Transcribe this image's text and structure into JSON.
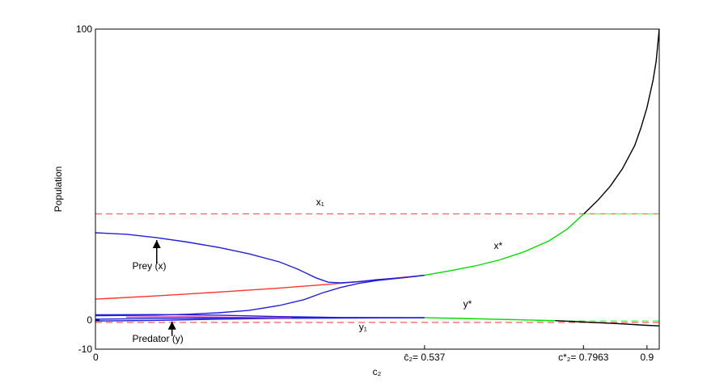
{
  "chart_data": {
    "type": "line",
    "title": "",
    "xlabel": "c₂",
    "ylabel": "Population",
    "xlim": [
      0,
      0.92
    ],
    "ylim": [
      -10,
      100
    ],
    "grid": false,
    "legend": "none",
    "x_ticks": [
      {
        "value": 0,
        "label": "0"
      },
      {
        "value": 0.537,
        "label": "c̄₂= 0.537"
      },
      {
        "value": 0.7963,
        "label": "c*₂= 0.7963"
      },
      {
        "value": 0.9,
        "label": "0.9"
      }
    ],
    "y_ticks": [
      {
        "value": 100,
        "label": "100"
      },
      {
        "value": 0,
        "label": "0"
      },
      {
        "value": -10,
        "label": "-10"
      }
    ],
    "annotations": [
      {
        "text": "x₁",
        "x": 0.36,
        "y": 39.5
      },
      {
        "text": "x*",
        "x": 0.65,
        "y": 24.5
      },
      {
        "text": "y*",
        "x": 0.6,
        "y": 4.5
      },
      {
        "text": "y₁",
        "x": 0.43,
        "y": -3.5
      },
      {
        "text": "Prey (x)",
        "x": 0.06,
        "y": 17.5
      },
      {
        "text": "Predator (y)",
        "x": 0.06,
        "y": -7.5
      }
    ],
    "arrows": [
      {
        "from": [
          0.1,
          19.5
        ],
        "to": [
          0.1,
          27.5
        ]
      },
      {
        "from": [
          0.125,
          -5.5
        ],
        "to": [
          0.125,
          -0.5
        ]
      }
    ],
    "series": [
      {
        "color": "#ff6a6a",
        "dash": "8,5",
        "points": [
          [
            0,
            36.5
          ],
          [
            0.92,
            36.5
          ]
        ]
      },
      {
        "color": "#ff6a6a",
        "dash": "8,5",
        "points": [
          [
            0,
            -0.8
          ],
          [
            0.92,
            -0.8
          ]
        ]
      },
      {
        "color": "#66ff66",
        "dash": "8,5",
        "points": [
          [
            0.797,
            36.5
          ],
          [
            0.92,
            36.5
          ]
        ]
      },
      {
        "color": "#66ff66",
        "dash": "8,5",
        "points": [
          [
            0.72,
            -0.3
          ],
          [
            0.92,
            -0.3
          ]
        ]
      },
      {
        "color": "#ff3333",
        "dash": "",
        "points": [
          [
            0,
            7.2
          ],
          [
            0.1,
            8.3
          ],
          [
            0.2,
            9.6
          ],
          [
            0.3,
            11.0
          ],
          [
            0.4,
            12.6
          ],
          [
            0.537,
            15.4
          ]
        ]
      },
      {
        "color": "#1f1fdd",
        "dash": "",
        "points": [
          [
            0,
            30
          ],
          [
            0.05,
            29.5
          ],
          [
            0.1,
            28.3
          ],
          [
            0.15,
            26.8
          ],
          [
            0.2,
            25.0
          ],
          [
            0.25,
            22.8
          ],
          [
            0.3,
            20.0
          ],
          [
            0.33,
            17.5
          ],
          [
            0.36,
            14.5
          ],
          [
            0.38,
            13.0
          ],
          [
            0.4,
            12.8
          ],
          [
            0.43,
            13.2
          ],
          [
            0.46,
            13.9
          ],
          [
            0.5,
            14.5
          ],
          [
            0.537,
            15.4
          ]
        ]
      },
      {
        "color": "#1f1fdd",
        "dash": "",
        "points": [
          [
            0,
            1.5
          ],
          [
            0.1,
            1.7
          ],
          [
            0.15,
            2.0
          ],
          [
            0.2,
            2.5
          ],
          [
            0.25,
            3.3
          ],
          [
            0.3,
            5.0
          ],
          [
            0.34,
            7.0
          ],
          [
            0.37,
            9.3
          ],
          [
            0.4,
            11.2
          ],
          [
            0.43,
            12.6
          ],
          [
            0.46,
            13.6
          ],
          [
            0.5,
            14.5
          ],
          [
            0.537,
            15.4
          ]
        ]
      },
      {
        "color": "#1f1fdd",
        "dash": "",
        "points": [
          [
            0,
            1.8
          ],
          [
            0.1,
            1.9
          ],
          [
            0.2,
            1.7
          ],
          [
            0.3,
            1.2
          ],
          [
            0.4,
            0.9
          ],
          [
            0.537,
            0.8
          ]
        ]
      },
      {
        "color": "#1f1fdd",
        "dash": "",
        "points": [
          [
            0,
            0.3
          ],
          [
            0.1,
            0.5
          ],
          [
            0.2,
            0.7
          ],
          [
            0.3,
            0.8
          ],
          [
            0.537,
            0.8
          ]
        ]
      },
      {
        "color": "#1f1fdd",
        "dash": "",
        "points": [
          [
            0,
            -0.3
          ],
          [
            0.1,
            -0.1
          ],
          [
            0.2,
            0.3
          ],
          [
            0.3,
            0.6
          ],
          [
            0.537,
            0.8
          ]
        ]
      },
      {
        "color": "#cc2aa0",
        "dash": "",
        "points": [
          [
            0.05,
            1.0
          ],
          [
            0.15,
            1.1
          ],
          [
            0.25,
            0.9
          ],
          [
            0.32,
            0.8
          ]
        ]
      },
      {
        "color": "#00dd00",
        "dash": "",
        "points": [
          [
            0.537,
            15.4
          ],
          [
            0.58,
            17.0
          ],
          [
            0.62,
            18.6
          ],
          [
            0.66,
            20.7
          ],
          [
            0.7,
            23.5
          ],
          [
            0.74,
            27.2
          ],
          [
            0.77,
            31.3
          ],
          [
            0.797,
            36.5
          ]
        ]
      },
      {
        "color": "#00dd00",
        "dash": "",
        "points": [
          [
            0.537,
            0.8
          ],
          [
            0.6,
            0.55
          ],
          [
            0.65,
            0.3
          ],
          [
            0.7,
            0.05
          ],
          [
            0.75,
            -0.2
          ]
        ]
      },
      {
        "color": "#000000",
        "dash": "",
        "points": [
          [
            0.797,
            36.5
          ],
          [
            0.82,
            41.2
          ],
          [
            0.84,
            46.0
          ],
          [
            0.86,
            52.0
          ],
          [
            0.88,
            60.0
          ],
          [
            0.89,
            66.0
          ],
          [
            0.9,
            73.0
          ],
          [
            0.91,
            82.5
          ],
          [
            0.915,
            89.0
          ],
          [
            0.92,
            100.0
          ]
        ]
      },
      {
        "color": "#000000",
        "dash": "",
        "points": [
          [
            0.75,
            -0.2
          ],
          [
            0.8,
            -0.7
          ],
          [
            0.85,
            -1.2
          ],
          [
            0.9,
            -1.8
          ],
          [
            0.92,
            -2.0
          ]
        ]
      }
    ]
  }
}
